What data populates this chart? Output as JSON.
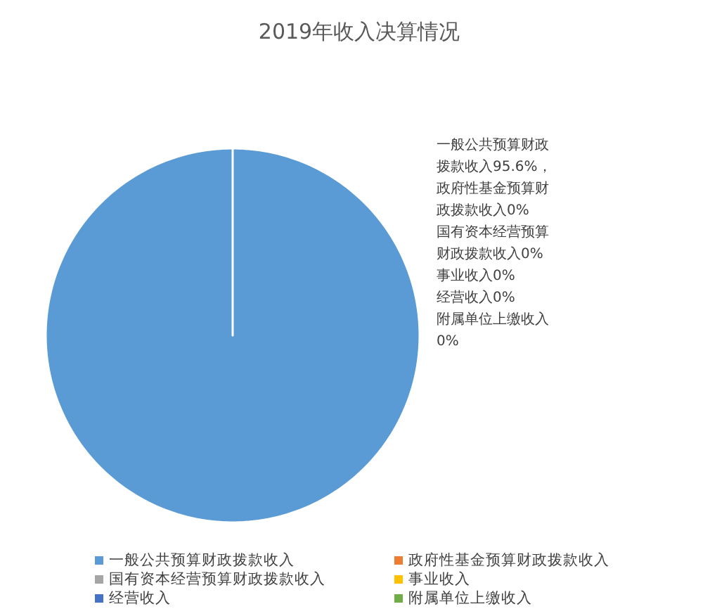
{
  "chart_data": {
    "type": "pie",
    "title": "2019年收入决算情况",
    "categories": [
      "一般公共预算财政拨款收入",
      "政府性基金预算财政拨款收入",
      "国有资本经营预算财政拨款收入",
      "事业收入",
      "经营收入",
      "附属单位上缴收入"
    ],
    "values": [
      95.6,
      0,
      0,
      0,
      0,
      0
    ],
    "colors": [
      "#5b9bd5",
      "#ed7d31",
      "#a5a5a5",
      "#ffc000",
      "#4472c4",
      "#70ad47"
    ],
    "value_labels": [
      "一般公共预算财政拨款收入95.6%，",
      "政府性基金预算财政拨款收入0%",
      "国有资本经营预算财政拨款收入0%",
      "事业收入0%",
      "经营收入0%",
      "附属单位上缴收入0%"
    ],
    "legend": "bottom"
  }
}
